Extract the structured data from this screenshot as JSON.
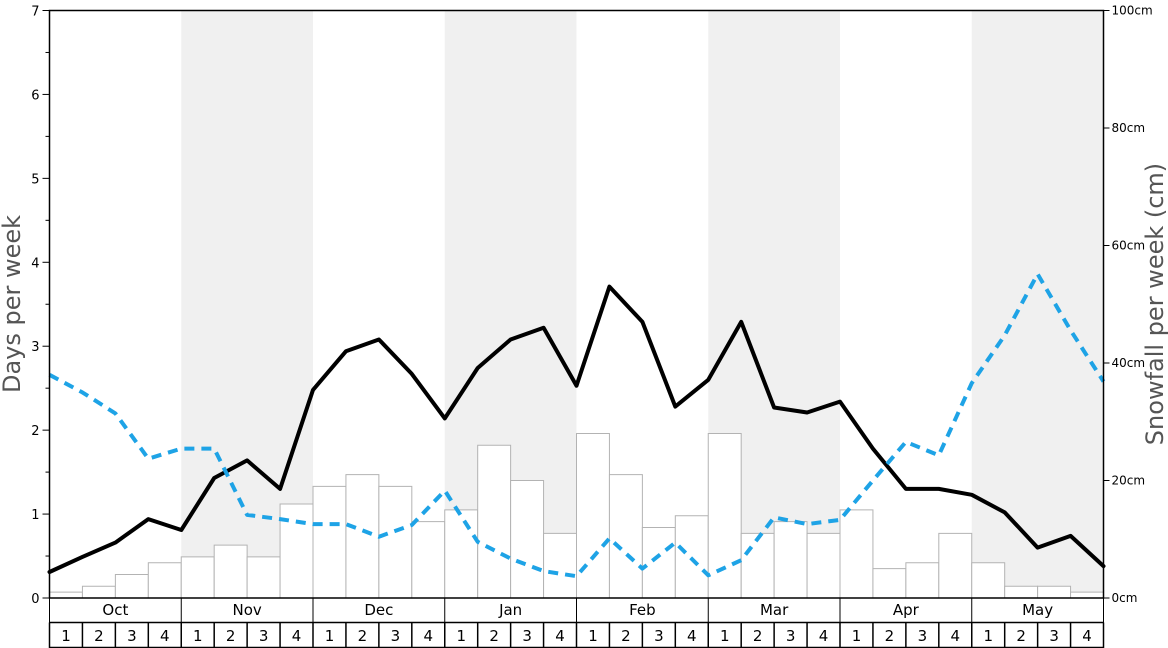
{
  "chart_data": {
    "type": "bar",
    "months": [
      "Oct",
      "Nov",
      "Dec",
      "Jan",
      "Feb",
      "Mar",
      "Apr",
      "May"
    ],
    "weeks": [
      "1",
      "2",
      "3",
      "4"
    ],
    "y_left": {
      "label": "Days per week",
      "ylim": [
        0,
        7
      ],
      "ticks": [
        "0",
        "1",
        "2",
        "3",
        "4",
        "5",
        "6",
        "7"
      ]
    },
    "y_right": {
      "label": "Snowfall per week (cm)",
      "ylim": [
        0,
        100
      ],
      "ticks": [
        "0cm",
        "20cm",
        "40cm",
        "60cm",
        "80cm",
        "100cm"
      ]
    },
    "bars": {
      "axis": "right",
      "values": [
        1,
        2,
        4,
        6,
        7,
        9,
        7,
        16,
        19,
        21,
        19,
        13,
        15,
        26,
        20,
        11,
        28,
        21,
        12,
        14,
        28,
        11,
        13,
        11,
        15,
        5,
        6,
        11,
        6,
        2,
        2,
        1
      ]
    },
    "lines": [
      {
        "axis": "left",
        "style": "solid",
        "color": "#000000",
        "values": [
          0.31,
          0.49,
          0.66,
          0.94,
          0.81,
          1.43,
          1.64,
          1.3,
          2.48,
          2.94,
          3.08,
          2.67,
          2.14,
          2.74,
          3.08,
          3.22,
          2.53,
          3.71,
          3.29,
          2.28,
          2.6,
          3.29,
          2.27,
          2.21,
          2.34,
          1.78,
          1.3,
          1.3,
          1.23,
          1.02,
          0.6,
          0.74,
          0.38
        ]
      },
      {
        "axis": "left",
        "style": "dashed",
        "color": "#1ea3e6",
        "values": [
          2.66,
          2.45,
          2.2,
          1.66,
          1.78,
          1.78,
          0.99,
          0.94,
          0.88,
          0.88,
          0.73,
          0.87,
          1.28,
          0.67,
          0.47,
          0.32,
          0.26,
          0.71,
          0.35,
          0.66,
          0.27,
          0.45,
          0.96,
          0.88,
          0.93,
          1.4,
          1.86,
          1.7,
          2.56,
          3.13,
          3.86,
          3.19,
          2.58
        ]
      }
    ]
  }
}
